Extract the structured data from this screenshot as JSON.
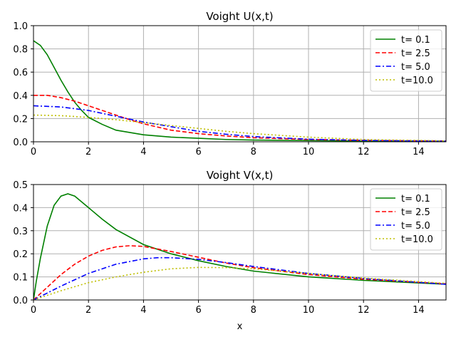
{
  "chart_data": [
    {
      "type": "line",
      "title": "Voight U(x,t)",
      "xlabel": "",
      "ylabel": "",
      "xlim": [
        0,
        15
      ],
      "ylim": [
        0,
        1.0
      ],
      "xticks": [
        0,
        2,
        4,
        6,
        8,
        10,
        12,
        14
      ],
      "yticks": [
        0.0,
        0.2,
        0.4,
        0.6,
        0.8,
        1.0
      ],
      "xtick_labels": [
        "0",
        "2",
        "4",
        "6",
        "8",
        "10",
        "12",
        "14"
      ],
      "ytick_labels": [
        "0.0",
        "0.2",
        "0.4",
        "0.6",
        "0.8",
        "1.0"
      ],
      "grid": true,
      "legend_position": "top-right",
      "series": [
        {
          "name": "t= 0.1",
          "color": "#008000",
          "dash": "solid",
          "x": [
            0,
            0.25,
            0.5,
            0.75,
            1.0,
            1.25,
            1.5,
            1.75,
            2.0,
            2.5,
            3.0,
            3.5,
            4.0,
            5.0,
            6.0,
            7.0,
            8.0,
            10.0,
            12.0,
            15.0
          ],
          "y": [
            0.87,
            0.83,
            0.75,
            0.64,
            0.53,
            0.43,
            0.34,
            0.27,
            0.21,
            0.15,
            0.1,
            0.08,
            0.06,
            0.04,
            0.03,
            0.02,
            0.015,
            0.01,
            0.006,
            0.004
          ]
        },
        {
          "name": "t= 2.5",
          "color": "#ff0000",
          "dash": "dashed",
          "x": [
            0,
            0.5,
            1.0,
            1.5,
            2.0,
            2.5,
            3.0,
            3.5,
            4.0,
            5.0,
            6.0,
            7.0,
            8.0,
            10.0,
            12.0,
            15.0
          ],
          "y": [
            0.4,
            0.4,
            0.38,
            0.35,
            0.31,
            0.27,
            0.23,
            0.19,
            0.155,
            0.1,
            0.07,
            0.05,
            0.035,
            0.02,
            0.012,
            0.007
          ]
        },
        {
          "name": "t= 5.0",
          "color": "#0000ff",
          "dash": "dashdot",
          "x": [
            0,
            1.0,
            2.0,
            3.0,
            4.0,
            5.0,
            6.0,
            7.0,
            8.0,
            10.0,
            12.0,
            15.0
          ],
          "y": [
            0.31,
            0.3,
            0.27,
            0.22,
            0.17,
            0.13,
            0.09,
            0.065,
            0.045,
            0.022,
            0.012,
            0.005
          ]
        },
        {
          "name": "t=10.0",
          "color": "#bfbf00",
          "dash": "dotted",
          "x": [
            0,
            1.0,
            2.0,
            3.0,
            4.0,
            5.0,
            6.0,
            7.0,
            8.0,
            10.0,
            12.0,
            15.0
          ],
          "y": [
            0.23,
            0.225,
            0.21,
            0.19,
            0.165,
            0.14,
            0.115,
            0.09,
            0.07,
            0.04,
            0.02,
            0.008
          ]
        }
      ]
    },
    {
      "type": "line",
      "title": "Voight V(x,t)",
      "xlabel": "x",
      "ylabel": "",
      "xlim": [
        0,
        15
      ],
      "ylim": [
        0,
        0.5
      ],
      "xticks": [
        0,
        2,
        4,
        6,
        8,
        10,
        12,
        14
      ],
      "yticks": [
        0.0,
        0.1,
        0.2,
        0.3,
        0.4,
        0.5
      ],
      "xtick_labels": [
        "0",
        "2",
        "4",
        "6",
        "8",
        "10",
        "12",
        "14"
      ],
      "ytick_labels": [
        "0.0",
        "0.1",
        "0.2",
        "0.3",
        "0.4",
        "0.5"
      ],
      "grid": true,
      "legend_position": "top-right",
      "series": [
        {
          "name": "t= 0.1",
          "color": "#008000",
          "dash": "solid",
          "x": [
            0,
            0.1,
            0.25,
            0.5,
            0.75,
            1.0,
            1.25,
            1.5,
            2.0,
            2.5,
            3.0,
            4.0,
            5.0,
            6.0,
            7.0,
            8.0,
            10.0,
            12.0,
            15.0
          ],
          "y": [
            0.0,
            0.08,
            0.18,
            0.32,
            0.41,
            0.45,
            0.46,
            0.45,
            0.4,
            0.35,
            0.305,
            0.24,
            0.2,
            0.17,
            0.145,
            0.125,
            0.1,
            0.085,
            0.068
          ]
        },
        {
          "name": "t= 2.5",
          "color": "#ff0000",
          "dash": "dashed",
          "x": [
            0,
            0.5,
            1.0,
            1.5,
            2.0,
            2.5,
            3.0,
            3.5,
            4.0,
            5.0,
            6.0,
            7.0,
            8.0,
            10.0,
            12.0,
            15.0
          ],
          "y": [
            0.0,
            0.055,
            0.11,
            0.155,
            0.19,
            0.215,
            0.23,
            0.235,
            0.232,
            0.21,
            0.185,
            0.16,
            0.14,
            0.11,
            0.09,
            0.07
          ]
        },
        {
          "name": "t= 5.0",
          "color": "#0000ff",
          "dash": "dashdot",
          "x": [
            0,
            0.5,
            1.0,
            2.0,
            3.0,
            4.0,
            4.5,
            5.0,
            6.0,
            7.0,
            8.0,
            10.0,
            12.0,
            15.0
          ],
          "y": [
            0.0,
            0.03,
            0.06,
            0.115,
            0.155,
            0.178,
            0.183,
            0.183,
            0.176,
            0.162,
            0.145,
            0.115,
            0.093,
            0.068
          ]
        },
        {
          "name": "t=10.0",
          "color": "#bfbf00",
          "dash": "dotted",
          "x": [
            0,
            1.0,
            2.0,
            3.0,
            4.0,
            5.0,
            6.0,
            7.0,
            8.0,
            10.0,
            12.0,
            15.0
          ],
          "y": [
            0.0,
            0.04,
            0.075,
            0.1,
            0.12,
            0.135,
            0.141,
            0.14,
            0.135,
            0.115,
            0.095,
            0.072
          ]
        }
      ]
    }
  ]
}
